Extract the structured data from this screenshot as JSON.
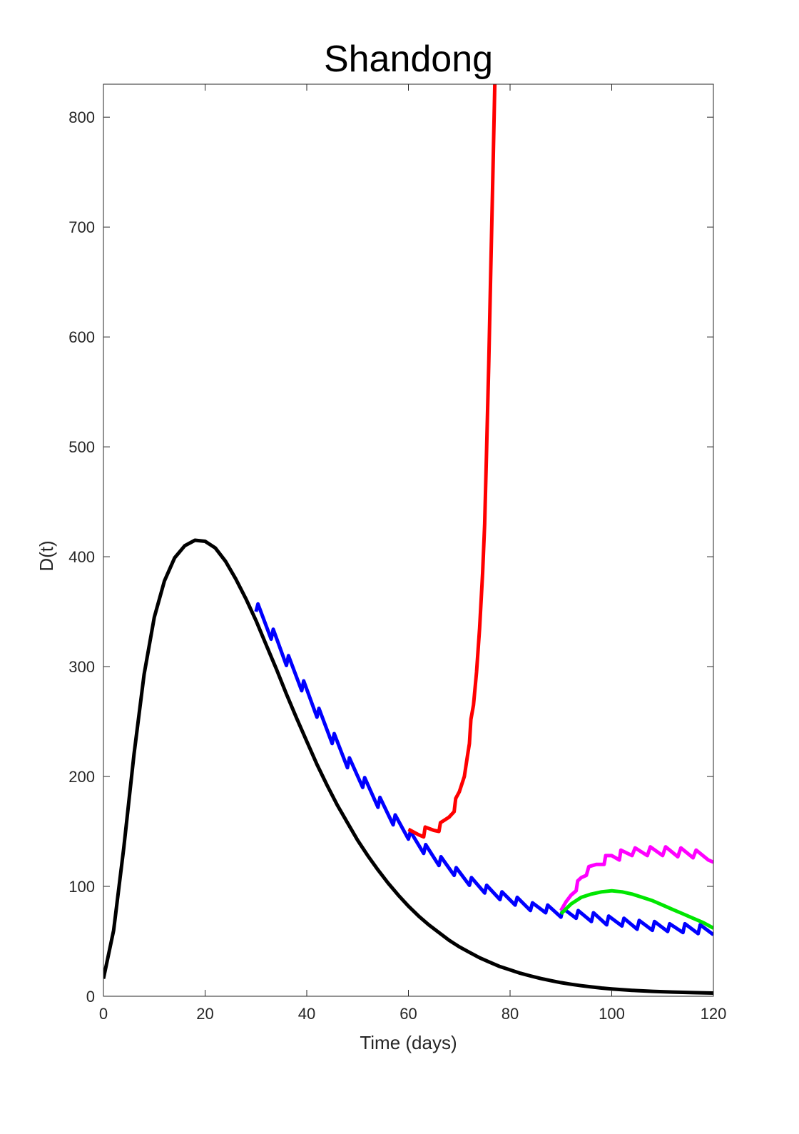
{
  "chart_data": {
    "type": "line",
    "title": "Shandong",
    "xlabel": "Time (days)",
    "ylabel": "D(t)",
    "xlim": [
      0,
      120
    ],
    "ylim": [
      0,
      830
    ],
    "xticks": [
      0,
      20,
      40,
      60,
      80,
      100,
      120
    ],
    "yticks": [
      0,
      100,
      200,
      300,
      400,
      500,
      600,
      700,
      800
    ],
    "grid": false,
    "legend": "none",
    "series": [
      {
        "color": "#000000",
        "points": [
          [
            0,
            16
          ],
          [
            2,
            60
          ],
          [
            4,
            135
          ],
          [
            6,
            220
          ],
          [
            8,
            293
          ],
          [
            10,
            345
          ],
          [
            12,
            378
          ],
          [
            14,
            399
          ],
          [
            16,
            410
          ],
          [
            18,
            415
          ],
          [
            20,
            414
          ],
          [
            22,
            408
          ],
          [
            24,
            396
          ],
          [
            26,
            380
          ],
          [
            28,
            362
          ],
          [
            30,
            342
          ],
          [
            32,
            320
          ],
          [
            34,
            298
          ],
          [
            36,
            275
          ],
          [
            38,
            253
          ],
          [
            40,
            232
          ],
          [
            42,
            211
          ],
          [
            44,
            192
          ],
          [
            46,
            174
          ],
          [
            48,
            158
          ],
          [
            50,
            142
          ],
          [
            52,
            128
          ],
          [
            54,
            115
          ],
          [
            56,
            103
          ],
          [
            58,
            92
          ],
          [
            60,
            82
          ],
          [
            62,
            73
          ],
          [
            64,
            65
          ],
          [
            66,
            58
          ],
          [
            68,
            51
          ],
          [
            70,
            45
          ],
          [
            72,
            40
          ],
          [
            74,
            35
          ],
          [
            76,
            31
          ],
          [
            78,
            27
          ],
          [
            80,
            24
          ],
          [
            82,
            21
          ],
          [
            84,
            18.5
          ],
          [
            86,
            16.2
          ],
          [
            88,
            14.2
          ],
          [
            90,
            12.4
          ],
          [
            92,
            10.9
          ],
          [
            94,
            9.6
          ],
          [
            96,
            8.5
          ],
          [
            98,
            7.5
          ],
          [
            100,
            6.7
          ],
          [
            104,
            5.4
          ],
          [
            108,
            4.5
          ],
          [
            112,
            3.8
          ],
          [
            116,
            3.3
          ],
          [
            120,
            2.9
          ]
        ]
      },
      {
        "color": "#0000ff",
        "points": [
          [
            30,
            350
          ],
          [
            30.4,
            357
          ],
          [
            33,
            325
          ],
          [
            33.4,
            334
          ],
          [
            36,
            301
          ],
          [
            36.4,
            310
          ],
          [
            39,
            278
          ],
          [
            39.4,
            287
          ],
          [
            42,
            254
          ],
          [
            42.4,
            262
          ],
          [
            45,
            230
          ],
          [
            45.4,
            239
          ],
          [
            48,
            208
          ],
          [
            48.4,
            217
          ],
          [
            51,
            190
          ],
          [
            51.4,
            199
          ],
          [
            54,
            172
          ],
          [
            54.4,
            181
          ],
          [
            57,
            156
          ],
          [
            57.4,
            165
          ],
          [
            60,
            143
          ],
          [
            60.4,
            150
          ],
          [
            63,
            130
          ],
          [
            63.4,
            138
          ],
          [
            66,
            119
          ],
          [
            66.4,
            127
          ],
          [
            69,
            110
          ],
          [
            69.4,
            117
          ],
          [
            72,
            101
          ],
          [
            72.4,
            108
          ],
          [
            75,
            94
          ],
          [
            75.4,
            101
          ],
          [
            78,
            88
          ],
          [
            78.4,
            95
          ],
          [
            81,
            83
          ],
          [
            81.4,
            90
          ],
          [
            84,
            78
          ],
          [
            84.4,
            85
          ],
          [
            87,
            76
          ],
          [
            87.4,
            83
          ],
          [
            90,
            72
          ],
          [
            90.4,
            80
          ],
          [
            93,
            71
          ],
          [
            93.4,
            78
          ],
          [
            96,
            68
          ],
          [
            96.4,
            76
          ],
          [
            99,
            65
          ],
          [
            99.4,
            73
          ],
          [
            102,
            64
          ],
          [
            102.4,
            71
          ],
          [
            105,
            61
          ],
          [
            105.4,
            69
          ],
          [
            108,
            60
          ],
          [
            108.4,
            68
          ],
          [
            111,
            59
          ],
          [
            111.4,
            66
          ],
          [
            114,
            58
          ],
          [
            114.4,
            66
          ],
          [
            117,
            57
          ],
          [
            117.4,
            65
          ],
          [
            120,
            56
          ]
        ]
      },
      {
        "color": "#ff0000",
        "points": [
          [
            60,
            152
          ],
          [
            62,
            147
          ],
          [
            63,
            145
          ],
          [
            63.3,
            154
          ],
          [
            65,
            151
          ],
          [
            66,
            150
          ],
          [
            66.3,
            158
          ],
          [
            67,
            160
          ],
          [
            68,
            163
          ],
          [
            69,
            168
          ],
          [
            69.3,
            180
          ],
          [
            70,
            186
          ],
          [
            71,
            200
          ],
          [
            71.6,
            218
          ],
          [
            72,
            230
          ],
          [
            72.3,
            252
          ],
          [
            72.8,
            265
          ],
          [
            73.4,
            295
          ],
          [
            74,
            335
          ],
          [
            74.6,
            385
          ],
          [
            75,
            430
          ],
          [
            75.4,
            500
          ],
          [
            75.8,
            575
          ],
          [
            76.2,
            660
          ],
          [
            76.6,
            745
          ],
          [
            77,
            830
          ]
        ]
      },
      {
        "color": "#ff00ff",
        "points": [
          [
            90,
            78
          ],
          [
            91,
            86
          ],
          [
            92,
            92
          ],
          [
            93,
            96
          ],
          [
            93.3,
            105
          ],
          [
            94,
            108
          ],
          [
            95,
            110
          ],
          [
            95.5,
            118
          ],
          [
            97,
            120
          ],
          [
            98.5,
            120
          ],
          [
            98.8,
            128
          ],
          [
            100,
            128
          ],
          [
            101.5,
            124
          ],
          [
            101.8,
            133
          ],
          [
            104,
            128
          ],
          [
            104.6,
            135
          ],
          [
            107,
            128
          ],
          [
            107.6,
            136
          ],
          [
            110,
            128
          ],
          [
            110.6,
            136
          ],
          [
            113,
            127
          ],
          [
            113.6,
            135
          ],
          [
            116,
            126
          ],
          [
            116.6,
            133
          ],
          [
            119,
            124
          ],
          [
            120,
            122
          ]
        ]
      },
      {
        "color": "#00e600",
        "points": [
          [
            90,
            75
          ],
          [
            92,
            84
          ],
          [
            94,
            90
          ],
          [
            96,
            93
          ],
          [
            98,
            95
          ],
          [
            100,
            96
          ],
          [
            102,
            95
          ],
          [
            104,
            93
          ],
          [
            106,
            90
          ],
          [
            108,
            87
          ],
          [
            110,
            83
          ],
          [
            112,
            79
          ],
          [
            114,
            75
          ],
          [
            116,
            71
          ],
          [
            118,
            67
          ],
          [
            120,
            62
          ]
        ]
      }
    ]
  }
}
